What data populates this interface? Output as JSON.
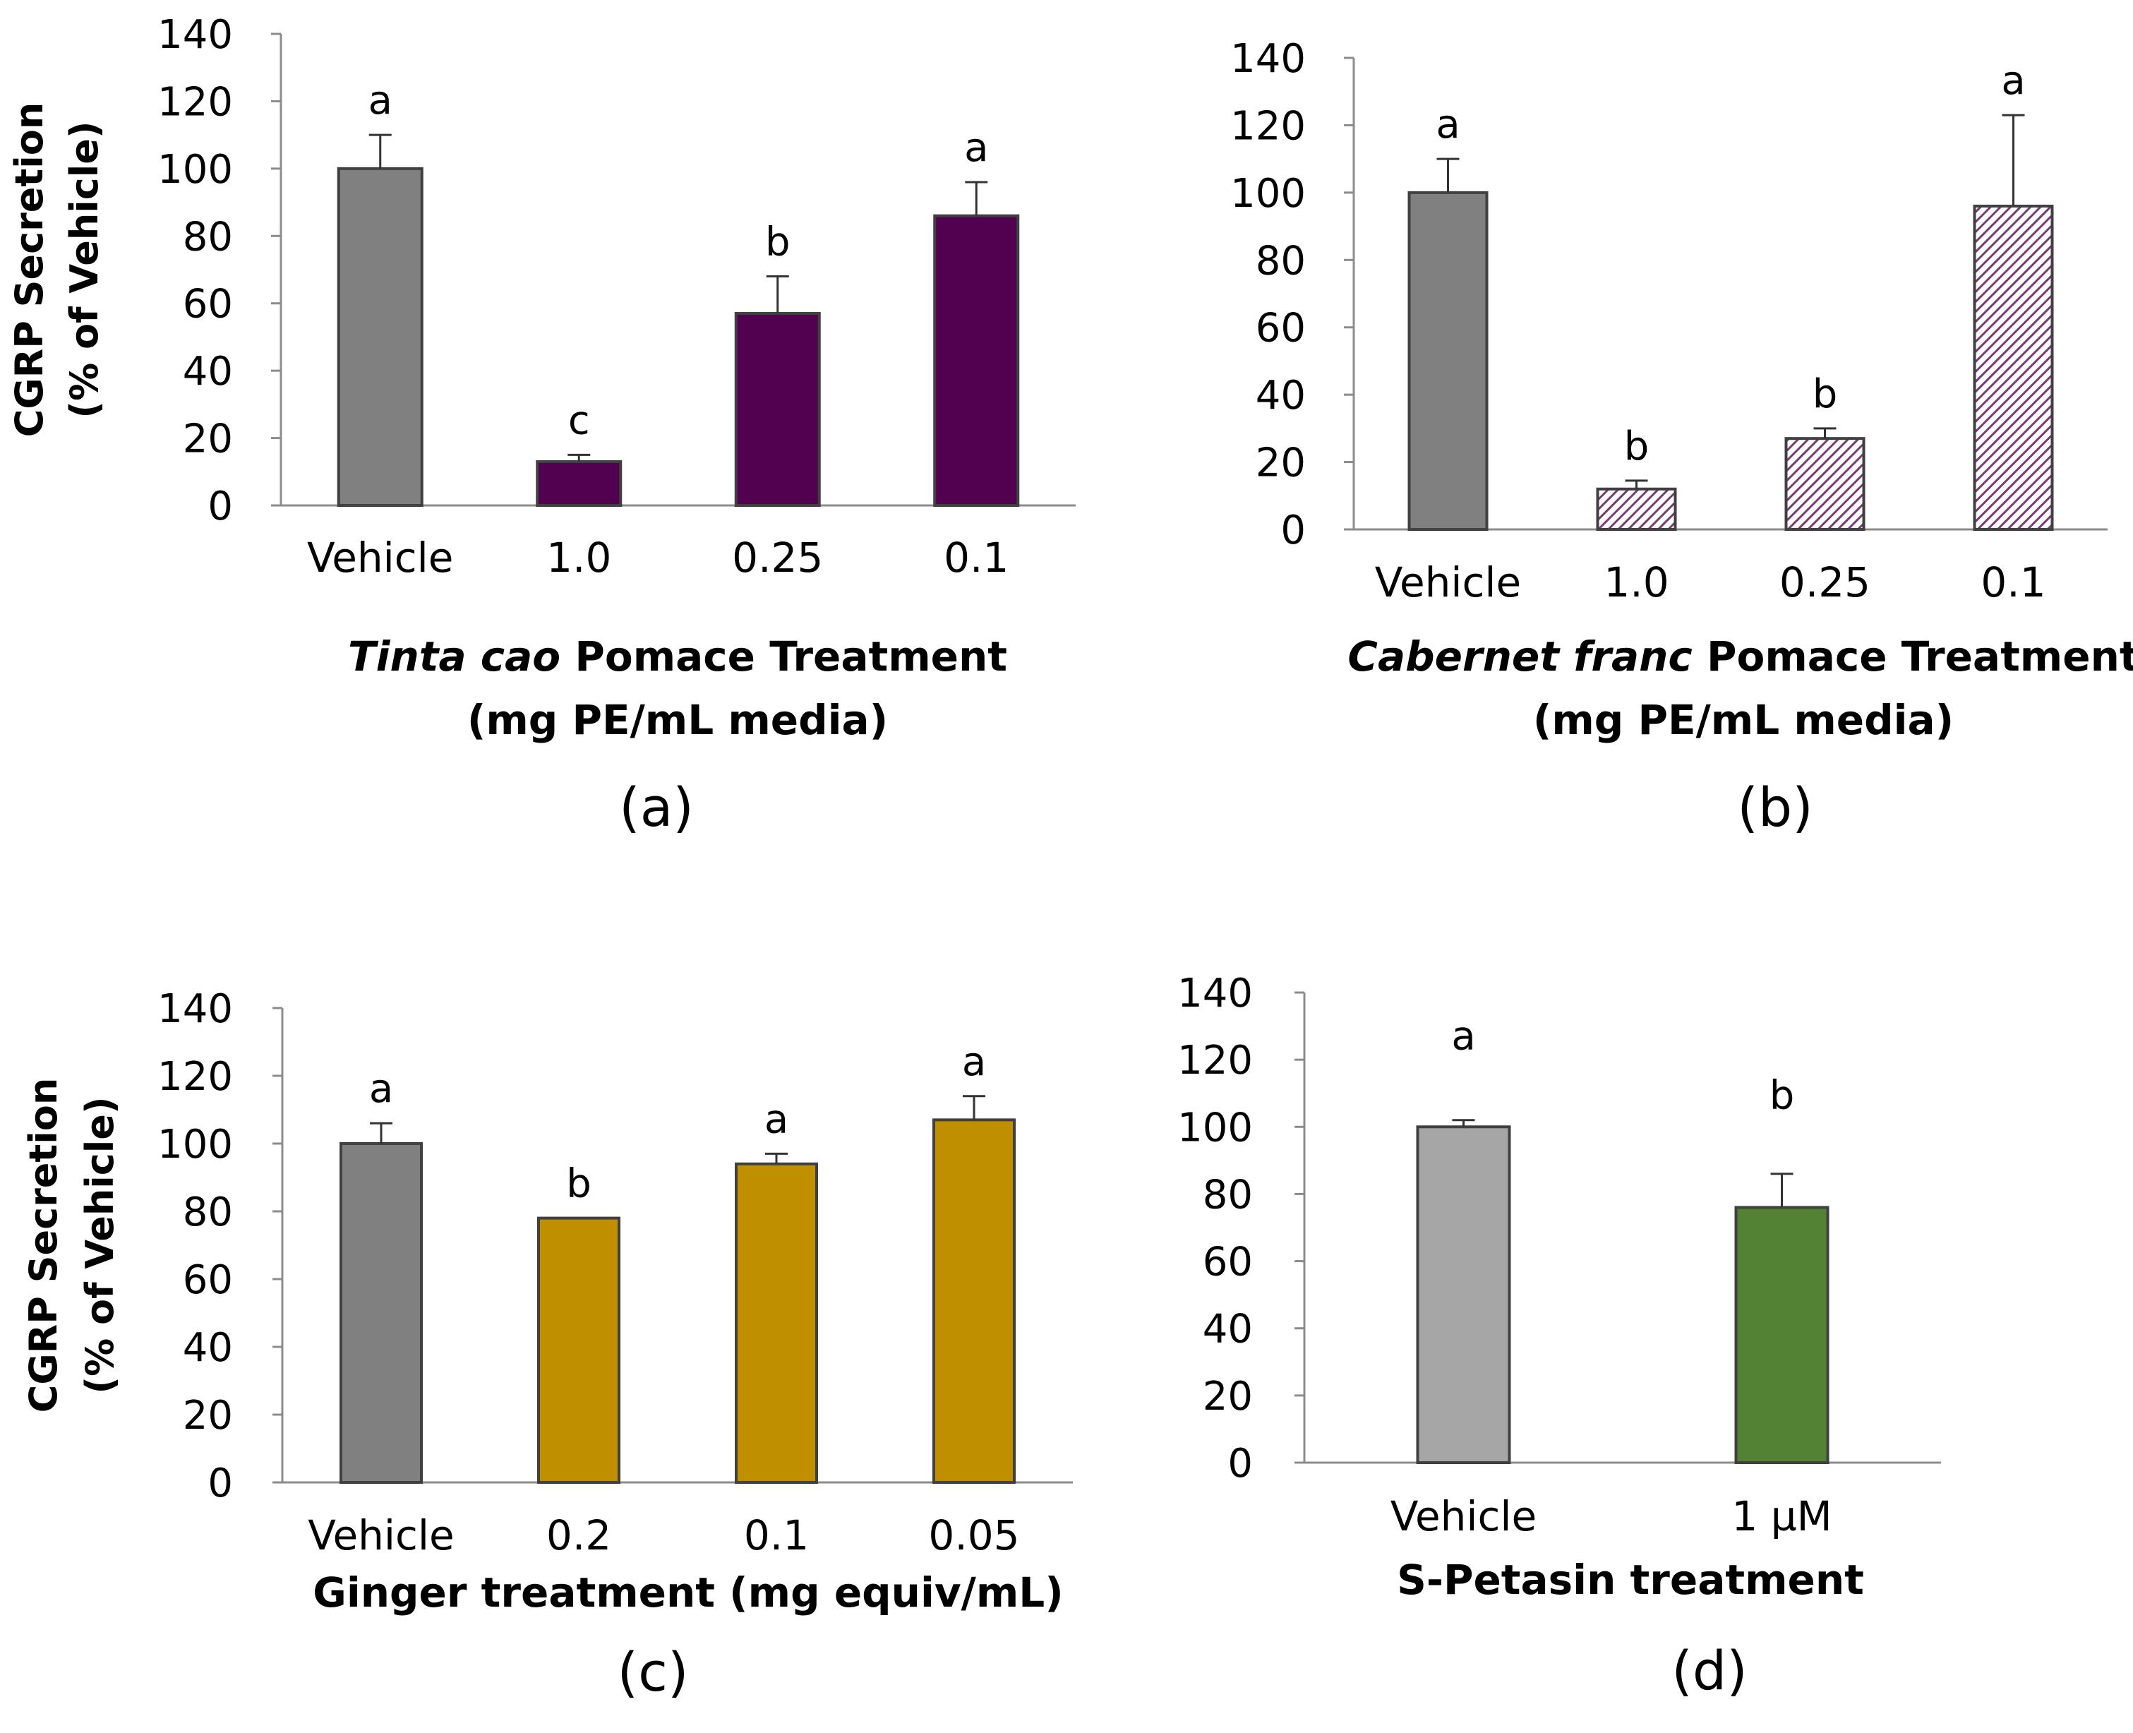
{
  "chart_data": [
    {
      "type": "bar",
      "panel_label": "(a)",
      "ylabel": [
        "CGRP Secretion",
        "(% of Vehicle)"
      ],
      "xlabel": [
        [
          {
            "text": "Tinta cao",
            "italic": true
          },
          {
            "text": " Pomace Treatment",
            "italic": false
          }
        ],
        [
          {
            "text": "(mg PE/mL media)",
            "italic": false
          }
        ]
      ],
      "categories": [
        "Vehicle",
        "1.0",
        "0.25",
        "0.1"
      ],
      "values": [
        100,
        13,
        57,
        86
      ],
      "errors": [
        10,
        2,
        11,
        10
      ],
      "significance": [
        "a",
        "c",
        "b",
        "a"
      ],
      "colors": [
        "#808080",
        "#520050",
        "#520050",
        "#520050"
      ],
      "patterns": [
        "solid",
        "solid",
        "solid",
        "solid"
      ],
      "ylim": [
        0,
        140
      ],
      "yticks": [
        0,
        20,
        40,
        60,
        80,
        100,
        120,
        140
      ]
    },
    {
      "type": "bar",
      "panel_label": "(b)",
      "ylabel": [],
      "xlabel": [
        [
          {
            "text": "Cabernet franc",
            "italic": true
          },
          {
            "text": " Pomace Treatment",
            "italic": false
          }
        ],
        [
          {
            "text": "(mg PE/mL media)",
            "italic": false
          }
        ]
      ],
      "categories": [
        "Vehicle",
        "1.0",
        "0.25",
        "0.1"
      ],
      "values": [
        100,
        12,
        27,
        96
      ],
      "errors": [
        10,
        2.5,
        3,
        27
      ],
      "significance": [
        "a",
        "b",
        "b",
        "a"
      ],
      "colors": [
        "#808080",
        "#7a3a78",
        "#7a3a78",
        "#7a3a78"
      ],
      "patterns": [
        "solid",
        "hatch",
        "hatch",
        "hatch"
      ],
      "ylim": [
        0,
        140
      ],
      "yticks": [
        0,
        20,
        40,
        60,
        80,
        100,
        120,
        140
      ]
    },
    {
      "type": "bar",
      "panel_label": "(c)",
      "ylabel": [
        "CGRP Secretion",
        "(% of Vehicle)"
      ],
      "xlabel": [
        [
          {
            "text": "Ginger treatment (mg equiv/mL)",
            "italic": false
          }
        ]
      ],
      "categories": [
        "Vehicle",
        "0.2",
        "0.1",
        "0.05"
      ],
      "values": [
        100,
        78,
        94,
        107
      ],
      "errors": [
        6,
        0,
        3,
        7
      ],
      "significance": [
        "a",
        "b",
        "a",
        "a"
      ],
      "colors": [
        "#808080",
        "#bf8f00",
        "#bf8f00",
        "#bf8f00"
      ],
      "patterns": [
        "solid",
        "solid",
        "solid",
        "solid"
      ],
      "ylim": [
        0,
        140
      ],
      "yticks": [
        0,
        20,
        40,
        60,
        80,
        100,
        120,
        140
      ]
    },
    {
      "type": "bar",
      "panel_label": "(d)",
      "ylabel": [],
      "xlabel": [
        [
          {
            "text": "S-Petasin treatment",
            "italic": false
          }
        ]
      ],
      "categories": [
        "Vehicle",
        "1 µM"
      ],
      "values": [
        100,
        76
      ],
      "errors": [
        2,
        10
      ],
      "significance": [
        "a",
        "b"
      ],
      "colors": [
        "#a6a6a6",
        "#548235"
      ],
      "patterns": [
        "solid",
        "solid"
      ],
      "ylim": [
        0,
        140
      ],
      "yticks": [
        0,
        20,
        40,
        60,
        80,
        100,
        120,
        140
      ]
    }
  ]
}
